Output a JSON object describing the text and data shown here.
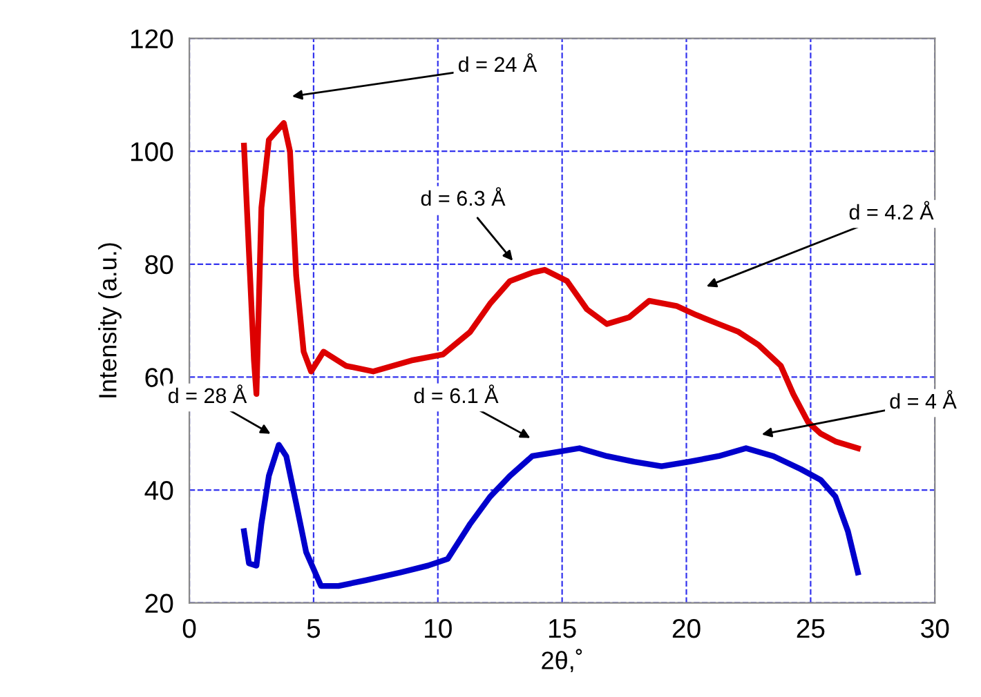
{
  "chart_data": {
    "type": "line",
    "xlabel": "2θ,˚",
    "ylabel": "Intensity (a.u.)",
    "xlim": [
      0,
      30
    ],
    "ylim": [
      20,
      120
    ],
    "xticks": [
      0,
      5,
      10,
      15,
      20,
      25,
      30
    ],
    "yticks": [
      20,
      40,
      60,
      80,
      100,
      120
    ],
    "grid": true,
    "marker": "none",
    "line_style": "solid",
    "series": [
      {
        "color": "#dd0000",
        "x": [
          2.2,
          2.6,
          2.7,
          2.9,
          3.2,
          3.8,
          4.05,
          4.3,
          4.6,
          4.9,
          5.4,
          6.3,
          7.4,
          9,
          10.2,
          11.3,
          12.1,
          12.9,
          13.8,
          14.3,
          15.2,
          16,
          16.8,
          17.7,
          18.5,
          19.6,
          20.4,
          21.3,
          22.1,
          22.9,
          23.8,
          24.3,
          24.9,
          25.4,
          26,
          26.9
        ],
        "values": [
          101,
          63,
          57,
          90,
          102,
          105,
          100,
          78,
          64.5,
          61,
          64.5,
          62,
          61,
          63,
          64,
          68,
          73,
          77,
          78.5,
          79,
          77,
          72,
          69.4,
          70.6,
          73.5,
          72.6,
          71,
          69.4,
          68,
          65.7,
          62,
          57,
          52,
          50,
          48.6,
          47.4
        ]
      },
      {
        "color": "#0000cc",
        "x": [
          2.2,
          2.4,
          2.7,
          2.9,
          3.2,
          3.6,
          3.9,
          4.3,
          4.7,
          5.3,
          6,
          7.1,
          8.5,
          9.6,
          10.4,
          11.3,
          12.1,
          12.9,
          13.8,
          14.6,
          15.7,
          16.8,
          17.9,
          19,
          20.1,
          21.3,
          22.4,
          23.5,
          24.6,
          25.4,
          26,
          26.5,
          26.9
        ],
        "values": [
          32.7,
          27,
          26.6,
          34,
          42.5,
          48,
          46,
          37.6,
          29,
          23,
          23,
          24,
          25.4,
          26.6,
          27.8,
          34,
          38.8,
          42.5,
          46,
          46.6,
          47.4,
          46,
          45,
          44.2,
          45,
          46,
          47.4,
          46,
          43.7,
          41.8,
          38.8,
          32.7,
          25.4
        ]
      }
    ],
    "annotations": [
      "d = 24 Å",
      "d = 6.3 Å",
      "d = 4.2 Å",
      "d = 28 Å",
      "d = 6.1 Å",
      "d = 4 Å"
    ]
  }
}
